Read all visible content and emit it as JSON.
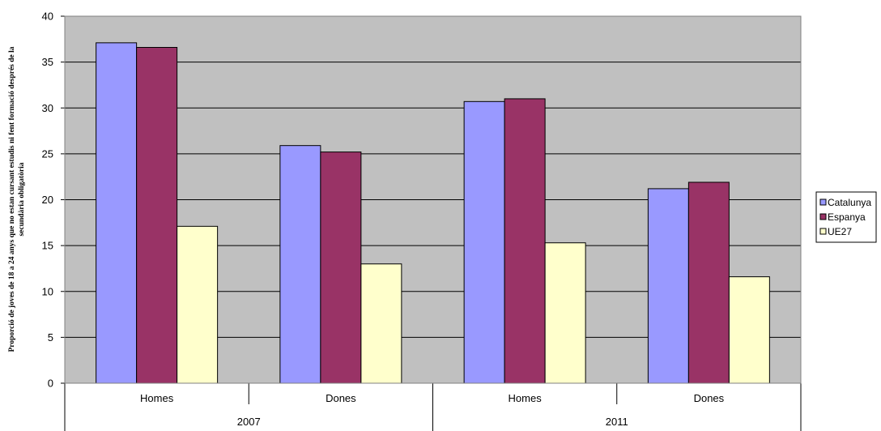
{
  "chart_data": {
    "type": "bar",
    "ylabel_lines": [
      "Proporció de joves de 18 a 24 anys que no estan cursant estudis ni fent formació després de la",
      "secundària obligatòria"
    ],
    "xlabel": "",
    "ylim": [
      0,
      40
    ],
    "y_ticks": [
      "0",
      "5",
      "10",
      "15",
      "20",
      "25",
      "30",
      "35",
      "40"
    ],
    "groups": [
      "2007",
      "2011"
    ],
    "categories": [
      "Homes",
      "Dones",
      "Homes",
      "Dones"
    ],
    "series": [
      {
        "name": "Catalunya",
        "color": "#9999ff",
        "values": [
          37.1,
          25.9,
          30.7,
          21.2
        ]
      },
      {
        "name": "Espanya",
        "color": "#993366",
        "values": [
          36.6,
          25.2,
          31.0,
          21.9
        ]
      },
      {
        "name": "UE27",
        "color": "#ffffcc",
        "values": [
          17.1,
          13.0,
          15.3,
          11.6
        ]
      }
    ],
    "grid": true,
    "plot_background": "#c0c0c0",
    "legend_position": "right"
  }
}
